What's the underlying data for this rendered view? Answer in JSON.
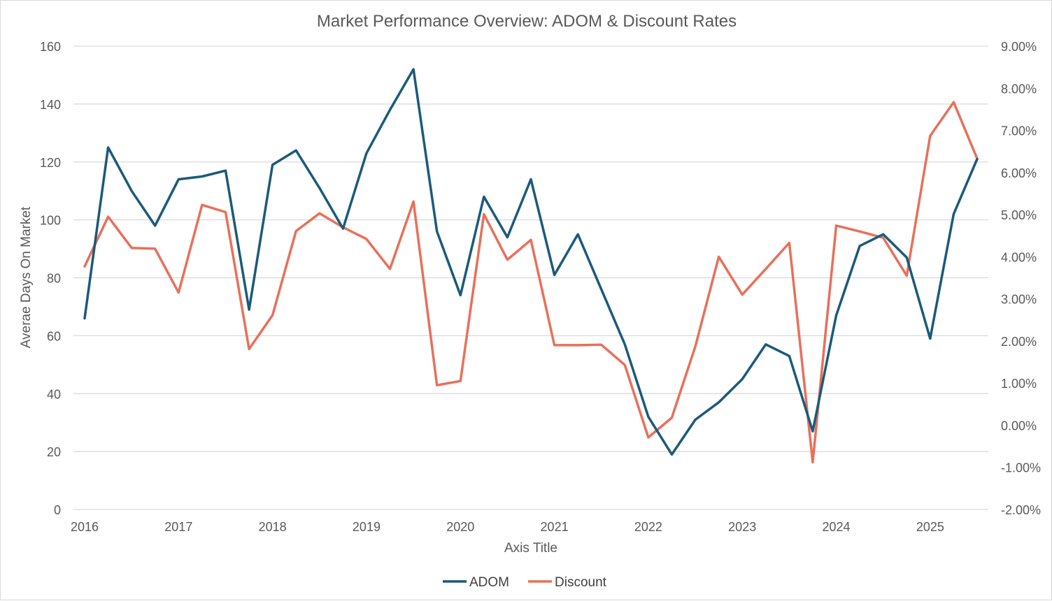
{
  "chart_data": {
    "type": "line",
    "title": "Market Performance Overview: ADOM & Discount Rates",
    "xlabel": "Axis Title",
    "ylabel": "Averae Days On Market",
    "y2label": "",
    "x_tick_labels": [
      "2016",
      "2017",
      "2018",
      "2019",
      "2020",
      "2021",
      "2022",
      "2023",
      "2024",
      "2025"
    ],
    "x": [
      2016.0,
      2016.25,
      2016.5,
      2016.75,
      2017.0,
      2017.25,
      2017.5,
      2017.75,
      2018.0,
      2018.25,
      2018.5,
      2018.75,
      2019.0,
      2019.25,
      2019.5,
      2019.75,
      2020.0,
      2020.25,
      2020.5,
      2020.75,
      2021.0,
      2021.25,
      2021.5,
      2021.75,
      2022.0,
      2022.25,
      2022.5,
      2022.75,
      2023.0,
      2023.25,
      2023.5,
      2023.75,
      2024.0,
      2024.25,
      2024.5,
      2024.75,
      2025.0,
      2025.25,
      2025.5
    ],
    "xlim": [
      2016.0,
      2025.5
    ],
    "ylim": [
      0,
      160
    ],
    "y_ticks": [
      0,
      20,
      40,
      60,
      80,
      100,
      120,
      140,
      160
    ],
    "y2lim": [
      -2.0,
      9.0
    ],
    "y2_ticks": [
      -2,
      -1,
      0,
      1,
      2,
      3,
      4,
      5,
      6,
      7,
      8,
      9
    ],
    "y2_tick_labels": [
      "-2.00%",
      "-1.00%",
      "0.00%",
      "1.00%",
      "2.00%",
      "3.00%",
      "4.00%",
      "5.00%",
      "6.00%",
      "7.00%",
      "8.00%",
      "9.00%"
    ],
    "series": [
      {
        "name": "ADOM",
        "axis": "left",
        "color": "#1b5a7a",
        "values": [
          66,
          125,
          110,
          98,
          114,
          115,
          117,
          69,
          119,
          124,
          111,
          97,
          123,
          138,
          152,
          96,
          74,
          108,
          94,
          114,
          81,
          95,
          76,
          57,
          32,
          19,
          31,
          37,
          45,
          57,
          53,
          27,
          67,
          91,
          95,
          87,
          59,
          102,
          121
        ]
      },
      {
        "name": "Discount",
        "axis": "right",
        "color": "#e8705a",
        "values": [
          3.77,
          4.95,
          4.21,
          4.19,
          3.15,
          5.23,
          5.06,
          1.81,
          2.61,
          4.61,
          5.03,
          4.7,
          4.42,
          3.71,
          5.31,
          0.95,
          1.05,
          5.01,
          3.93,
          4.4,
          1.9,
          1.9,
          1.91,
          1.43,
          -0.29,
          0.18,
          1.87,
          4.0,
          3.1,
          3.71,
          4.33,
          -0.88,
          4.74,
          4.6,
          4.45,
          3.55,
          6.87,
          7.67,
          6.33
        ]
      }
    ],
    "legend_position": "bottom",
    "grid": true
  }
}
